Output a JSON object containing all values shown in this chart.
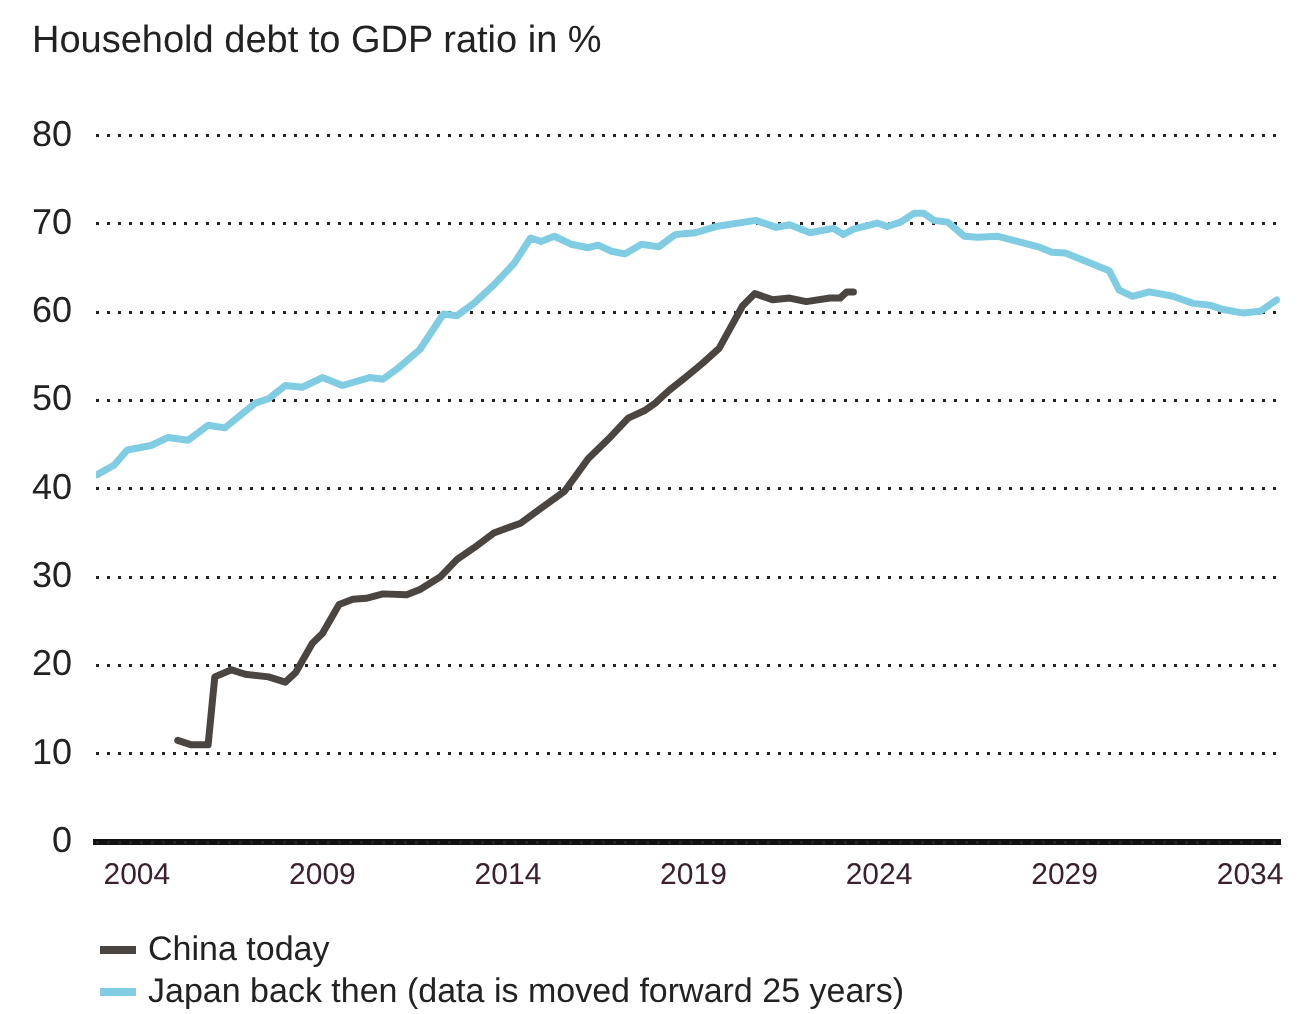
{
  "chart_data": {
    "type": "line",
    "ylabel": "Household debt to GDP ratio in %",
    "xlim": [
      2002.9,
      2034.8
    ],
    "xticks": [
      2004,
      2009,
      2014,
      2019,
      2024,
      2029,
      2034
    ],
    "ylim": [
      0,
      80
    ],
    "yticks": [
      0,
      10,
      20,
      30,
      40,
      50,
      60,
      70,
      80
    ],
    "grid": "y",
    "legend": "bottom",
    "marker": "none",
    "line_style": "solid",
    "series": [
      {
        "name": "China today",
        "color": "#4a4541",
        "x": [
          2005.1,
          2005.47,
          2005.92,
          2006.1,
          2006.55,
          2006.92,
          2007.55,
          2008.0,
          2008.28,
          2008.73,
          2009.0,
          2009.45,
          2009.82,
          2010.18,
          2010.63,
          2011.27,
          2011.63,
          2012.17,
          2012.63,
          2013.08,
          2013.62,
          2014.34,
          2014.89,
          2015.52,
          2016.16,
          2016.7,
          2017.24,
          2017.7,
          2017.97,
          2018.33,
          2018.78,
          2019.24,
          2019.69,
          2020.32,
          2020.65,
          2021.14,
          2021.59,
          2022.04,
          2022.68,
          2022.95,
          2023.13,
          2023.31
        ],
        "values": [
          11.5,
          11.0,
          11.0,
          18.7,
          19.5,
          19.0,
          18.7,
          18.1,
          19.2,
          22.5,
          23.6,
          26.9,
          27.5,
          27.6,
          28.1,
          28.0,
          28.6,
          30.0,
          32.0,
          33.3,
          35.0,
          36.1,
          37.8,
          39.7,
          43.4,
          45.6,
          48.0,
          48.9,
          49.7,
          51.1,
          52.6,
          54.2,
          55.9,
          60.7,
          62.1,
          61.4,
          61.6,
          61.2,
          61.6,
          61.6,
          62.3,
          62.3
        ]
      },
      {
        "name": "Japan back then (data is moved forward 25 years)",
        "color": "#7fcce3",
        "x": [
          2002.93,
          2003.39,
          2003.74,
          2004.38,
          2004.83,
          2005.38,
          2005.92,
          2006.37,
          2007.19,
          2007.55,
          2008.0,
          2008.46,
          2009.0,
          2009.54,
          2010.27,
          2010.63,
          2011.08,
          2011.63,
          2012.26,
          2012.62,
          2013.08,
          2013.62,
          2014.16,
          2014.61,
          2014.89,
          2015.25,
          2015.7,
          2016.16,
          2016.43,
          2016.79,
          2017.15,
          2017.6,
          2018.06,
          2018.51,
          2019.05,
          2019.6,
          2020.68,
          2021.23,
          2021.59,
          2022.14,
          2022.77,
          2023.04,
          2023.31,
          2023.95,
          2024.22,
          2024.58,
          2024.94,
          2025.21,
          2025.48,
          2025.85,
          2026.3,
          2026.66,
          2027.21,
          2027.75,
          2028.29,
          2028.66,
          2029.02,
          2029.74,
          2030.2,
          2030.47,
          2030.83,
          2031.28,
          2031.92,
          2032.46,
          2032.91,
          2033.28,
          2033.82,
          2034.27,
          2034.72
        ],
        "values": [
          41.6,
          42.7,
          44.4,
          44.9,
          45.8,
          45.5,
          47.2,
          46.9,
          49.7,
          50.2,
          51.7,
          51.5,
          52.6,
          51.7,
          52.6,
          52.4,
          53.8,
          55.8,
          59.8,
          59.6,
          61.0,
          63.1,
          65.5,
          68.4,
          68.0,
          68.6,
          67.7,
          67.3,
          67.6,
          66.9,
          66.6,
          67.7,
          67.4,
          68.8,
          69.0,
          69.7,
          70.4,
          69.6,
          69.9,
          69.0,
          69.5,
          68.8,
          69.4,
          70.1,
          69.7,
          70.2,
          71.2,
          71.2,
          70.4,
          70.2,
          68.6,
          68.5,
          68.6,
          68.0,
          67.4,
          66.8,
          66.7,
          65.5,
          64.7,
          62.5,
          61.8,
          62.3,
          61.8,
          61.0,
          60.8,
          60.3,
          59.9,
          60.1,
          61.4
        ]
      }
    ]
  }
}
